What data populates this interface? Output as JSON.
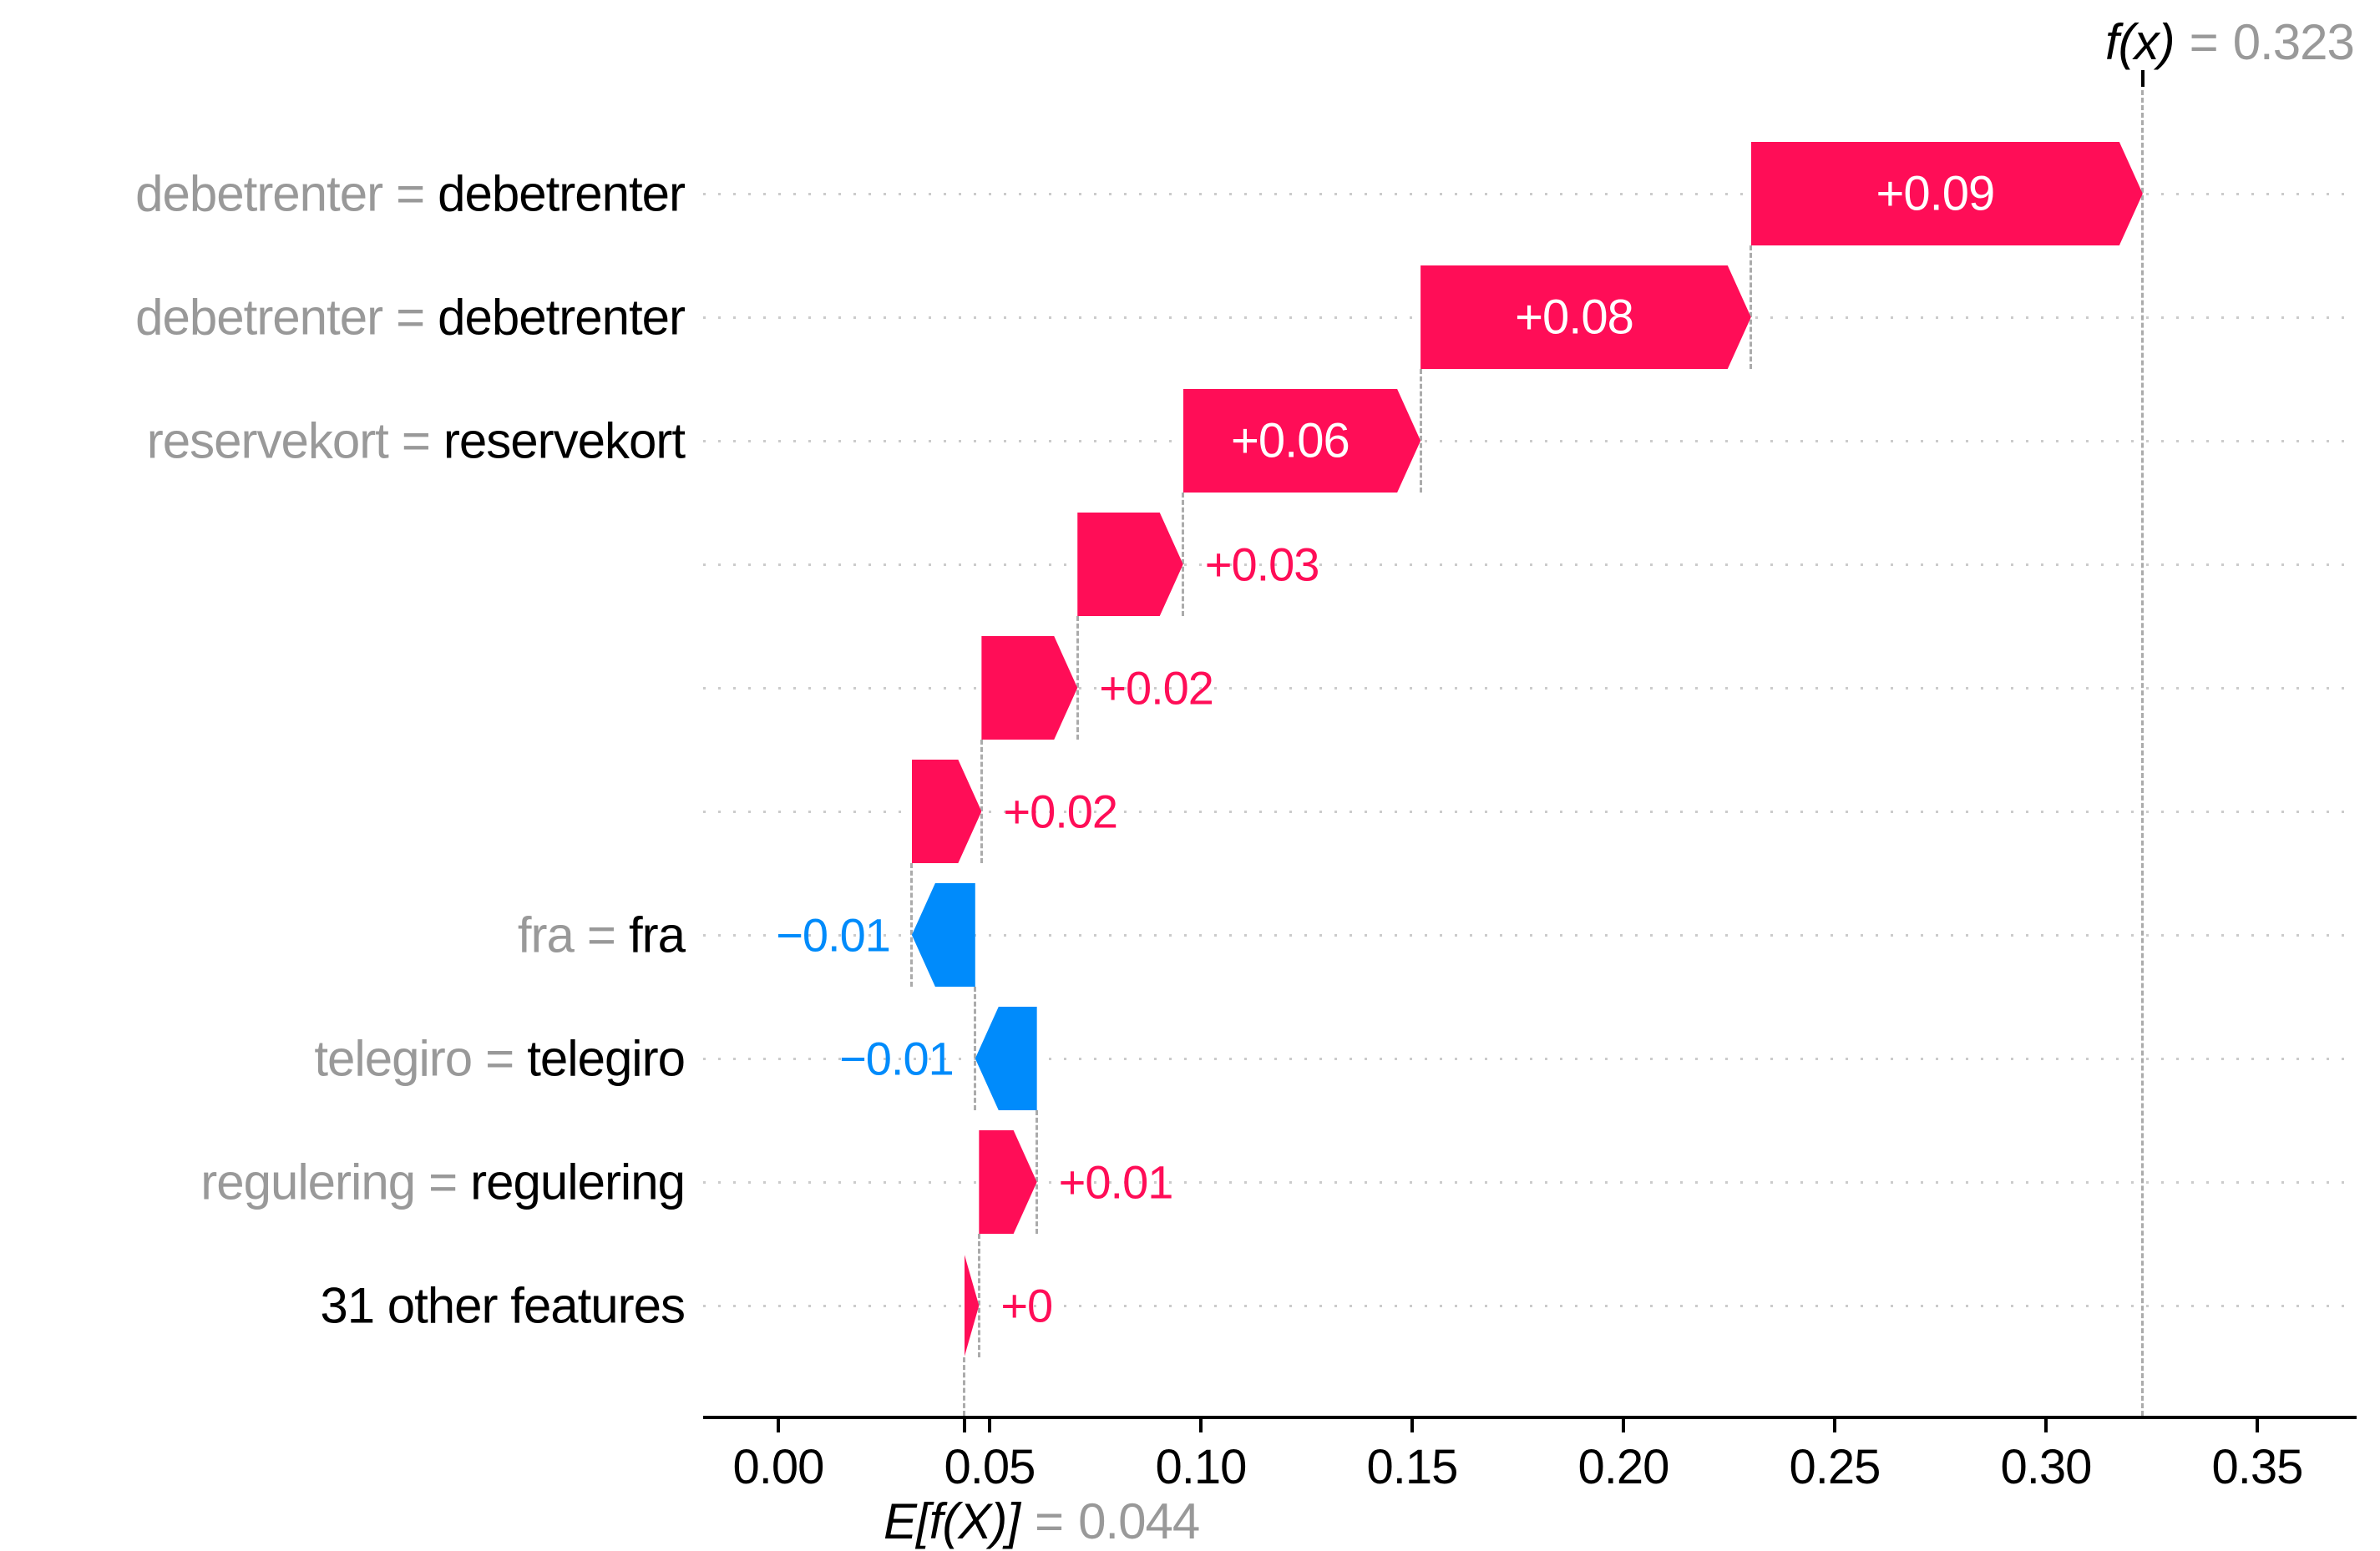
{
  "chart_data": {
    "type": "bar",
    "subtype": "shap-waterfall",
    "title": "",
    "xlabel": "",
    "ylabel": "",
    "grid": "dotted-row-lines",
    "legend": "none",
    "annotations": {
      "fx_name": "f(x)",
      "fx_eq": "=",
      "fx_value": "0.323",
      "ef_name": "E[f(X)]",
      "ef_eq": "=",
      "ef_value": "0.044"
    },
    "base_ef": 0.044,
    "final_fx": 0.3229,
    "xlim": [
      -0.0178,
      0.3735
    ],
    "x_ticks": [
      {
        "label": "0.00",
        "value": 0.0
      },
      {
        "label": "0.05",
        "value": 0.05
      },
      {
        "label": "0.10",
        "value": 0.1
      },
      {
        "label": "0.15",
        "value": 0.15
      },
      {
        "label": "0.20",
        "value": 0.2
      },
      {
        "label": "0.25",
        "value": 0.25
      },
      {
        "label": "0.30",
        "value": 0.3
      },
      {
        "label": "0.35",
        "value": 0.35
      }
    ],
    "rows": [
      {
        "feature_value": "debetrenter",
        "feature_name": "debetrenter",
        "contribution_label": "+0.09",
        "contribution": 0.0927,
        "start": 0.2302,
        "end": 0.3229,
        "sign": "positive",
        "value_label_position": "inside"
      },
      {
        "feature_value": "debetrenter",
        "feature_name": "debetrenter",
        "contribution_label": "+0.08",
        "contribution": 0.0782,
        "start": 0.152,
        "end": 0.2302,
        "sign": "positive",
        "value_label_position": "inside"
      },
      {
        "feature_value": "reservekort",
        "feature_name": "reservekort",
        "contribution_label": "+0.06",
        "contribution": 0.0562,
        "start": 0.0958,
        "end": 0.152,
        "sign": "positive",
        "value_label_position": "inside"
      },
      {
        "feature_value": "",
        "feature_name": "",
        "contribution_label": "+0.03",
        "contribution": 0.025,
        "start": 0.0708,
        "end": 0.0958,
        "sign": "positive",
        "value_label_position": "outside"
      },
      {
        "feature_value": "",
        "feature_name": "",
        "contribution_label": "+0.02",
        "contribution": 0.0227,
        "start": 0.0481,
        "end": 0.0708,
        "sign": "positive",
        "value_label_position": "outside"
      },
      {
        "feature_value": "",
        "feature_name": "",
        "contribution_label": "+0.02",
        "contribution": 0.0165,
        "start": 0.0316,
        "end": 0.0481,
        "sign": "positive",
        "value_label_position": "outside"
      },
      {
        "feature_value": "fra",
        "feature_name": "fra",
        "contribution_label": "−0.01",
        "contribution": -0.015,
        "start": 0.0466,
        "end": 0.0316,
        "sign": "negative",
        "value_label_position": "outside"
      },
      {
        "feature_value": "telegiro",
        "feature_name": "telegiro",
        "contribution_label": "−0.01",
        "contribution": -0.0146,
        "start": 0.0612,
        "end": 0.0466,
        "sign": "negative",
        "value_label_position": "outside"
      },
      {
        "feature_value": "regulering",
        "feature_name": "regulering",
        "contribution_label": "+0.01",
        "contribution": 0.0137,
        "start": 0.0475,
        "end": 0.0612,
        "sign": "positive",
        "value_label_position": "outside"
      },
      {
        "feature_value": "",
        "feature_name": "31 other features",
        "contribution_label": "+0",
        "contribution": 0.0035,
        "start": 0.044,
        "end": 0.0475,
        "sign": "positive",
        "value_label_position": "outside"
      }
    ],
    "colors": {
      "positive": "#ff0d57",
      "negative": "#008bfb",
      "inside_label": "#ffffff",
      "muted_text": "#999999",
      "text": "#000000",
      "dashed_line": "#ababab",
      "dotted_line": "#cbcbcb",
      "axis": "#000000",
      "background": "#ffffff"
    }
  }
}
